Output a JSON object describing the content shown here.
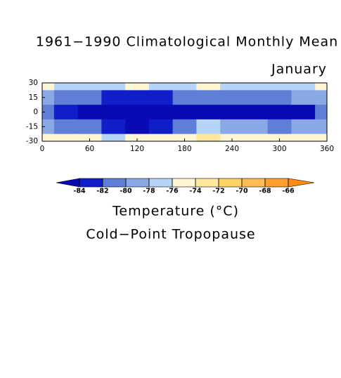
{
  "chart_data": {
    "type": "contour",
    "title": "1961−1990 Climatological Monthly Mean",
    "subtitle": "January",
    "colorbar_label": "Temperature (°C)",
    "caption": "Cold−Point Tropopause",
    "x": [
      0,
      30,
      60,
      90,
      120,
      150,
      180,
      210,
      240,
      270,
      300,
      330,
      360
    ],
    "y": [
      30,
      15,
      0,
      -15,
      -30
    ],
    "z": [
      [
        -75,
        -77,
        -78,
        -77,
        -75,
        -78,
        -78,
        -75,
        -77,
        -78,
        -78,
        -77,
        -75
      ],
      [
        -79,
        -81,
        -82,
        -83,
        -83,
        -83,
        -82,
        -81,
        -81,
        -81,
        -81,
        -80,
        -79
      ],
      [
        -81,
        -83,
        -84.5,
        -85,
        -85,
        -84.5,
        -84.5,
        -84.5,
        -84.5,
        -84.5,
        -84.5,
        -84.5,
        -81
      ],
      [
        -79,
        -81,
        -81,
        -83,
        -84.5,
        -83,
        -81,
        -78,
        -79,
        -80,
        -82,
        -80,
        -79
      ],
      [
        -76,
        -76,
        -75,
        -77,
        -75,
        -76,
        -76,
        -73,
        -75,
        -76,
        -75,
        -76,
        -76
      ]
    ],
    "levels": [
      -84,
      -82,
      -80,
      -78,
      -76,
      -74,
      -72,
      -70,
      -68,
      -66
    ],
    "colors": [
      "#0a0ab4",
      "#0f1ec8",
      "#5f7ed6",
      "#8ba8e6",
      "#b6d4f6",
      "#fff6d4",
      "#ffe89c",
      "#ffd366",
      "#ffbb55",
      "#ff9f30",
      "#ff8c10"
    ],
    "xlim": [
      0,
      360
    ],
    "xticks": [
      0,
      60,
      120,
      180,
      240,
      300,
      360
    ],
    "ylim": [
      -30,
      30
    ],
    "yticks": [
      30,
      15,
      0,
      -15,
      -30
    ]
  }
}
